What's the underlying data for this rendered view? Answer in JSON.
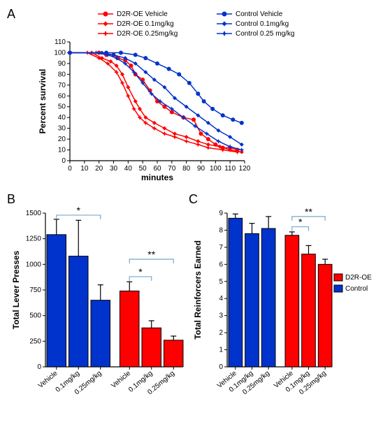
{
  "panelA": {
    "label": "A",
    "ylabel": "Percent survival",
    "xlabel": "minutes",
    "xlim": [
      0,
      120
    ],
    "xtick_step": 10,
    "ylim": [
      0,
      110
    ],
    "ytick_step": 10,
    "colors": {
      "d2roe": "#ff0000",
      "control": "#0033cc"
    },
    "legend": [
      {
        "label": "D2R-OE Vehicle",
        "color": "#ff0000",
        "marker": "circle"
      },
      {
        "label": "D2R-OE 0.1mg/kg",
        "color": "#ff0000",
        "marker": "diamond"
      },
      {
        "label": "D2R-OE 0.25mg/kg",
        "color": "#ff0000",
        "marker": "star"
      },
      {
        "label": "Control Vehicle",
        "color": "#0033cc",
        "marker": "circle"
      },
      {
        "label": "Control 0.1mg/kg",
        "color": "#0033cc",
        "marker": "diamond"
      },
      {
        "label": "Control 0.25 mg/kg",
        "color": "#0033cc",
        "marker": "star"
      }
    ],
    "series": [
      {
        "color": "#ff0000",
        "marker": "circle",
        "pts": [
          [
            0,
            100
          ],
          [
            20,
            100
          ],
          [
            25,
            98
          ],
          [
            30,
            98
          ],
          [
            33,
            95
          ],
          [
            38,
            93
          ],
          [
            42,
            88
          ],
          [
            45,
            80
          ],
          [
            50,
            75
          ],
          [
            55,
            65
          ],
          [
            60,
            55
          ],
          [
            65,
            50
          ],
          [
            70,
            45
          ],
          [
            78,
            40
          ],
          [
            85,
            38
          ],
          [
            90,
            25
          ],
          [
            95,
            20
          ],
          [
            100,
            15
          ],
          [
            105,
            12
          ],
          [
            110,
            12
          ],
          [
            115,
            10
          ]
        ]
      },
      {
        "color": "#ff0000",
        "marker": "diamond",
        "pts": [
          [
            0,
            100
          ],
          [
            15,
            100
          ],
          [
            22,
            95
          ],
          [
            28,
            92
          ],
          [
            32,
            88
          ],
          [
            36,
            80
          ],
          [
            40,
            68
          ],
          [
            45,
            55
          ],
          [
            48,
            48
          ],
          [
            52,
            40
          ],
          [
            58,
            35
          ],
          [
            65,
            30
          ],
          [
            72,
            25
          ],
          [
            80,
            22
          ],
          [
            88,
            18
          ],
          [
            95,
            15
          ],
          [
            103,
            13
          ],
          [
            110,
            10
          ],
          [
            118,
            8
          ]
        ]
      },
      {
        "color": "#ff0000",
        "marker": "star",
        "pts": [
          [
            0,
            100
          ],
          [
            12,
            100
          ],
          [
            20,
            95
          ],
          [
            26,
            90
          ],
          [
            32,
            82
          ],
          [
            36,
            72
          ],
          [
            40,
            60
          ],
          [
            44,
            48
          ],
          [
            48,
            40
          ],
          [
            52,
            35
          ],
          [
            58,
            30
          ],
          [
            65,
            25
          ],
          [
            72,
            22
          ],
          [
            80,
            18
          ],
          [
            88,
            15
          ],
          [
            95,
            12
          ],
          [
            105,
            10
          ],
          [
            115,
            8
          ]
        ]
      },
      {
        "color": "#0033cc",
        "marker": "circle",
        "pts": [
          [
            0,
            100
          ],
          [
            25,
            100
          ],
          [
            35,
            100
          ],
          [
            45,
            98
          ],
          [
            52,
            95
          ],
          [
            60,
            90
          ],
          [
            68,
            85
          ],
          [
            75,
            80
          ],
          [
            82,
            72
          ],
          [
            88,
            62
          ],
          [
            92,
            55
          ],
          [
            98,
            48
          ],
          [
            105,
            42
          ],
          [
            112,
            38
          ],
          [
            118,
            35
          ]
        ]
      },
      {
        "color": "#0033cc",
        "marker": "diamond",
        "pts": [
          [
            0,
            100
          ],
          [
            22,
            100
          ],
          [
            30,
            98
          ],
          [
            38,
            95
          ],
          [
            45,
            90
          ],
          [
            52,
            82
          ],
          [
            58,
            75
          ],
          [
            65,
            68
          ],
          [
            72,
            58
          ],
          [
            80,
            50
          ],
          [
            88,
            42
          ],
          [
            95,
            35
          ],
          [
            102,
            28
          ],
          [
            110,
            22
          ],
          [
            118,
            15
          ]
        ]
      },
      {
        "color": "#0033cc",
        "marker": "star",
        "pts": [
          [
            0,
            100
          ],
          [
            18,
            100
          ],
          [
            26,
            98
          ],
          [
            32,
            95
          ],
          [
            38,
            90
          ],
          [
            44,
            82
          ],
          [
            50,
            72
          ],
          [
            56,
            62
          ],
          [
            62,
            55
          ],
          [
            70,
            48
          ],
          [
            78,
            40
          ],
          [
            86,
            32
          ],
          [
            94,
            25
          ],
          [
            102,
            18
          ],
          [
            110,
            13
          ],
          [
            118,
            10
          ]
        ]
      }
    ]
  },
  "panelB": {
    "label": "B",
    "ylabel": "Total Lever Presses",
    "ylim": [
      0,
      1500
    ],
    "ytick_step": 250,
    "categories": [
      "Vehicle",
      "0.1mg/kg",
      "0.25mg/kg",
      "Vehicle",
      "0.1mg/kg",
      "0.25mg/kg"
    ],
    "bars": [
      {
        "value": 1290,
        "err": 150,
        "color": "#0033cc"
      },
      {
        "value": 1080,
        "err": 350,
        "color": "#0033cc"
      },
      {
        "value": 650,
        "err": 150,
        "color": "#0033cc"
      },
      {
        "value": 740,
        "err": 90,
        "color": "#ff0000"
      },
      {
        "value": 380,
        "err": 70,
        "color": "#ff0000"
      },
      {
        "value": 260,
        "err": 40,
        "color": "#ff0000"
      }
    ],
    "sig": [
      {
        "from": 0,
        "to": 2,
        "y": 1480,
        "label": "*"
      },
      {
        "from": 3,
        "to": 4,
        "y": 880,
        "label": "*"
      },
      {
        "from": 3,
        "to": 5,
        "y": 1050,
        "label": "**"
      }
    ]
  },
  "panelC": {
    "label": "C",
    "ylabel": "Total Reinforcers Earned",
    "ylim": [
      0,
      9
    ],
    "yticks": [
      0,
      1,
      2,
      3,
      4,
      5,
      6,
      7,
      8,
      9
    ],
    "categories": [
      "Vehicle",
      "0.1mg/kg",
      "0.25mg/kg",
      "Vehicle",
      "0.1mg/kg",
      "0.25mg/kg"
    ],
    "bars": [
      {
        "value": 8.7,
        "err": 0.25,
        "color": "#0033cc"
      },
      {
        "value": 7.8,
        "err": 0.6,
        "color": "#0033cc"
      },
      {
        "value": 8.1,
        "err": 0.7,
        "color": "#0033cc"
      },
      {
        "value": 7.7,
        "err": 0.2,
        "color": "#ff0000"
      },
      {
        "value": 6.6,
        "err": 0.5,
        "color": "#ff0000"
      },
      {
        "value": 6.0,
        "err": 0.3,
        "color": "#ff0000"
      }
    ],
    "sig": [
      {
        "from": 3,
        "to": 4,
        "y": 8.2,
        "label": "*"
      },
      {
        "from": 3,
        "to": 5,
        "y": 8.8,
        "label": "**"
      }
    ],
    "legend": [
      {
        "label": "D2R-OE",
        "color": "#ff0000"
      },
      {
        "label": "Control",
        "color": "#0033cc"
      }
    ]
  }
}
